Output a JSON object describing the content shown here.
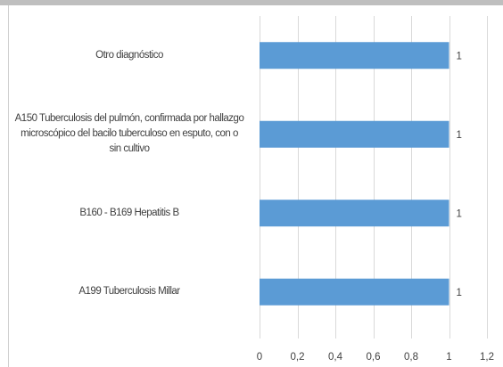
{
  "chart_data": {
    "type": "bar",
    "orientation": "horizontal",
    "categories": [
      "Otro diagnóstico",
      "A150 Tuberculosis del pulmón, confirmada por hallazgo microscópico del bacilo tuberculoso en esputo, con o sin cultivo",
      "B160 - B169 Hepatitis B",
      "A199 Tuberculosis Millar"
    ],
    "category_lines": [
      [
        "Otro diagnóstico"
      ],
      [
        "A150 Tuberculosis del pulmón, confirmada por hallazgo",
        "microscópico del bacilo tuberculoso en esputo, con o",
        "sin cultivo"
      ],
      [
        "B160 - B169 Hepatitis B"
      ],
      [
        "A199 Tuberculosis Millar"
      ]
    ],
    "values": [
      1,
      1,
      1,
      1
    ],
    "data_labels": [
      "1",
      "1",
      "1",
      "1"
    ],
    "xlim": [
      0,
      1.2
    ],
    "x_ticks": [
      0,
      0.2,
      0.4,
      0.6,
      0.8,
      1,
      1.2
    ],
    "x_tick_labels": [
      "0",
      "0,2",
      "0,4",
      "0,6",
      "0,8",
      "1",
      "1,2"
    ],
    "grid": true,
    "title": "",
    "xlabel": "",
    "ylabel": "",
    "bar_color": "#5b9bd5",
    "grid_color": "#d9d9d9"
  }
}
